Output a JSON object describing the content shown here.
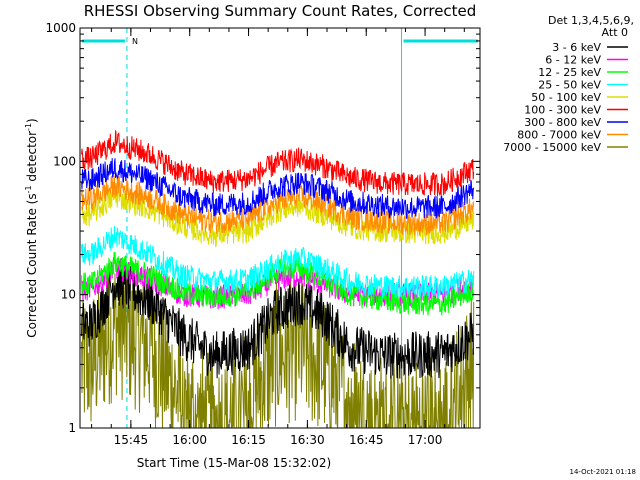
{
  "chart_data": {
    "type": "line",
    "title": "RHESSI Observing Summary Count Rates, Corrected",
    "xlabel": "Start Time (15-Mar-08 15:32:02)",
    "ylabel_main": "Corrected Count Rate (s",
    "ylabel_sup1": "-1",
    "ylabel_mid": " detector",
    "ylabel_sup2": "-1",
    "ylabel_end": ")",
    "y_scale": "log",
    "ylim": [
      1,
      1000
    ],
    "xlim": [
      "15:32:02",
      "17:14:00"
    ],
    "x_ticks": [
      "15:45",
      "16:00",
      "16:15",
      "16:30",
      "16:45",
      "17:00"
    ],
    "y_ticks": [
      {
        "value": 1,
        "label": "1"
      },
      {
        "value": 10,
        "label": "10"
      },
      {
        "value": 100,
        "label": "100"
      },
      {
        "value": 1000,
        "label": "1000"
      }
    ],
    "legend_header": [
      "Det 1,3,4,5,6,9,",
      "Att 0"
    ],
    "legend_position": "top-right, outside plot",
    "grid": false,
    "marker_text": "N",
    "night_intervals": [
      [
        "15:32:02",
        "15:44:00"
      ],
      [
        "16:54:00",
        "17:14:00"
      ]
    ],
    "series": [
      {
        "name": "3 - 6 keV",
        "color": "#000000",
        "x": [
          "15:35",
          "15:41",
          "15:50",
          "15:58",
          "16:06",
          "16:15",
          "16:22",
          "16:28",
          "16:34",
          "16:41",
          "16:50",
          "16:58",
          "17:05",
          "17:12"
        ],
        "values": [
          6,
          12.5,
          9,
          5,
          3.5,
          4,
          7.5,
          9,
          7,
          4,
          3.5,
          3.5,
          3.6,
          5
        ]
      },
      {
        "name": "6 - 12 keV",
        "color": "#ff00ff",
        "x": [
          "15:35",
          "15:41",
          "15:50",
          "15:58",
          "16:06",
          "16:15",
          "16:22",
          "16:28",
          "16:34",
          "16:41",
          "16:50",
          "16:58",
          "17:05",
          "17:12"
        ],
        "values": [
          11,
          16,
          13,
          10,
          9.5,
          10,
          13,
          14,
          12,
          10,
          10,
          10,
          10,
          12
        ]
      },
      {
        "name": "12 - 25 keV",
        "color": "#00ff00",
        "x": [
          "15:35",
          "15:41",
          "15:50",
          "15:58",
          "16:06",
          "16:15",
          "16:22",
          "16:28",
          "16:34",
          "16:41",
          "16:50",
          "16:58",
          "17:05",
          "17:12"
        ],
        "values": [
          12,
          17.5,
          14,
          10.5,
          9.5,
          10.5,
          15,
          16,
          13,
          10,
          9,
          8.5,
          8.5,
          11
        ]
      },
      {
        "name": "25 - 50 keV",
        "color": "#00ffff",
        "x": [
          "15:35",
          "15:41",
          "15:50",
          "15:58",
          "16:06",
          "16:15",
          "16:22",
          "16:28",
          "16:34",
          "16:41",
          "16:50",
          "16:58",
          "17:05",
          "17:12"
        ],
        "values": [
          20,
          28,
          20,
          14,
          12.5,
          13,
          17,
          19,
          16,
          12.5,
          11.5,
          11.5,
          11.5,
          13
        ]
      },
      {
        "name": "50 - 100 keV",
        "color": "#dddd00",
        "x": [
          "15:35",
          "15:41",
          "15:50",
          "15:58",
          "16:06",
          "16:15",
          "16:22",
          "16:28",
          "16:34",
          "16:41",
          "16:50",
          "16:58",
          "17:05",
          "17:12"
        ],
        "values": [
          40,
          55,
          44,
          33,
          28,
          30,
          42,
          47,
          40,
          32,
          30,
          29,
          29.5,
          36
        ]
      },
      {
        "name": "100 - 300 keV",
        "color": "#ff0000",
        "x": [
          "15:35",
          "15:41",
          "15:50",
          "15:58",
          "16:06",
          "16:15",
          "16:22",
          "16:28",
          "16:34",
          "16:41",
          "16:50",
          "16:58",
          "17:05",
          "17:12"
        ],
        "values": [
          105,
          140,
          112,
          82,
          70,
          74,
          96,
          104,
          92,
          75,
          68,
          67,
          67.5,
          88
        ]
      },
      {
        "name": "300 - 800 keV",
        "color": "#0000ff",
        "x": [
          "15:35",
          "15:41",
          "15:50",
          "15:58",
          "16:06",
          "16:15",
          "16:22",
          "16:28",
          "16:34",
          "16:41",
          "16:50",
          "16:58",
          "17:05",
          "17:12"
        ],
        "values": [
          72,
          90,
          73,
          54,
          47,
          49,
          64,
          70,
          62,
          50,
          46,
          45,
          45.5,
          62
        ]
      },
      {
        "name": "800 - 7000 keV",
        "color": "#ff8c00",
        "x": [
          "15:35",
          "15:41",
          "15:50",
          "15:58",
          "16:06",
          "16:15",
          "16:22",
          "16:28",
          "16:34",
          "16:41",
          "16:50",
          "16:58",
          "17:05",
          "17:12"
        ],
        "values": [
          52,
          66,
          53,
          40,
          35,
          37,
          49,
          55,
          48,
          38,
          35,
          34,
          34.5,
          44
        ]
      },
      {
        "name": "7000 - 15000 keV",
        "color": "#808000",
        "x": [
          "15:35",
          "15:41",
          "15:50",
          "15:58",
          "16:06",
          "16:15",
          "16:22",
          "16:28",
          "16:34",
          "16:41",
          "16:50",
          "16:58",
          "17:05",
          "17:12"
        ],
        "values": [
          3,
          6,
          4,
          1.6,
          1,
          1.6,
          3.5,
          4,
          3,
          1.5,
          1,
          1,
          1.1,
          3
        ]
      }
    ]
  },
  "timestamp": "14-Oct-2021 01:18"
}
